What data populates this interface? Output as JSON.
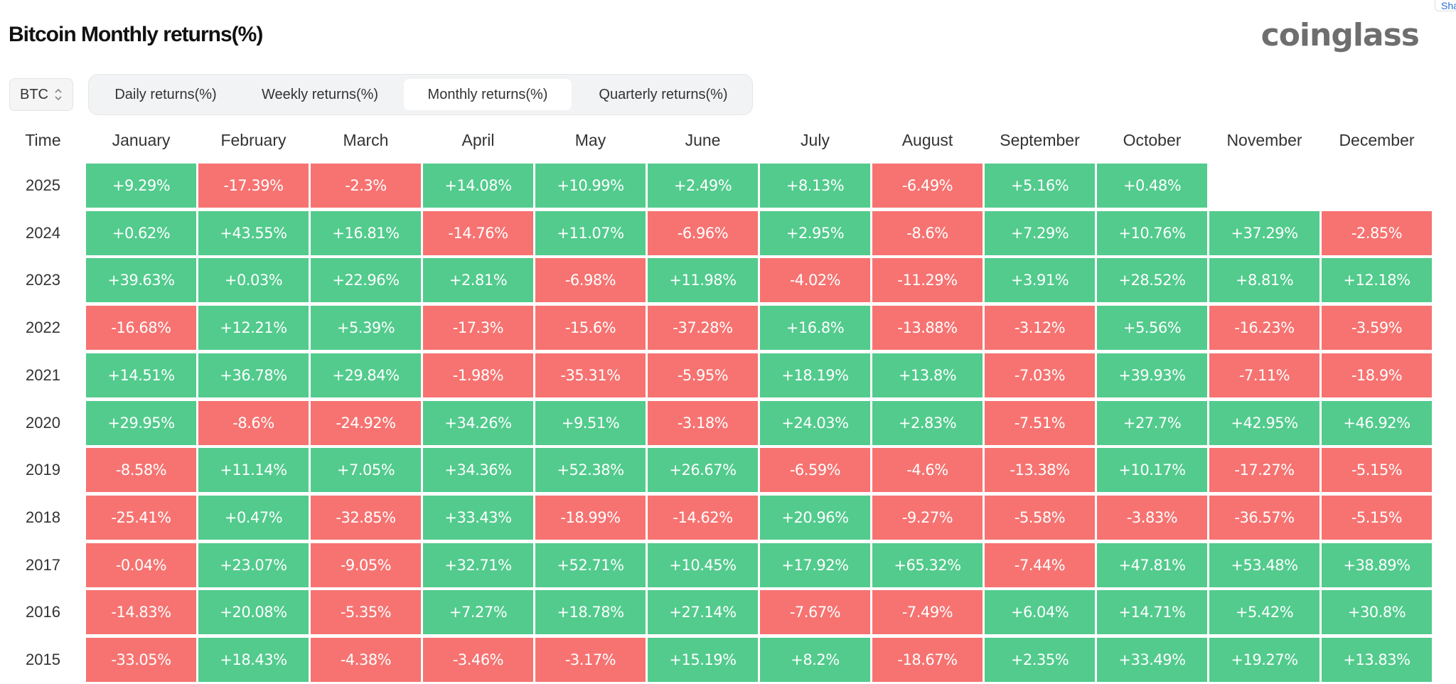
{
  "header": {
    "title": "Bitcoin Monthly returns(%)",
    "logo": "coinglass",
    "share_label": "Sha"
  },
  "controls": {
    "asset_select": {
      "value": "BTC",
      "icon": "up-down-chevron-icon"
    },
    "tabs": [
      {
        "label": "Daily returns(%)",
        "active": false
      },
      {
        "label": "Weekly returns(%)",
        "active": false
      },
      {
        "label": "Monthly returns(%)",
        "active": true
      },
      {
        "label": "Quarterly returns(%)",
        "active": false
      }
    ]
  },
  "colors": {
    "positive": "#52cb8d",
    "negative": "#f67371"
  },
  "chart_data": {
    "type": "heatmap",
    "title": "Bitcoin Monthly returns(%)",
    "row_header": "Time",
    "columns": [
      "January",
      "February",
      "March",
      "April",
      "May",
      "June",
      "July",
      "August",
      "September",
      "October",
      "November",
      "December"
    ],
    "rows": [
      {
        "year": "2025",
        "values": [
          "+9.29%",
          "-17.39%",
          "-2.3%",
          "+14.08%",
          "+10.99%",
          "+2.49%",
          "+8.13%",
          "-6.49%",
          "+5.16%",
          "+0.48%",
          null,
          null
        ]
      },
      {
        "year": "2024",
        "values": [
          "+0.62%",
          "+43.55%",
          "+16.81%",
          "-14.76%",
          "+11.07%",
          "-6.96%",
          "+2.95%",
          "-8.6%",
          "+7.29%",
          "+10.76%",
          "+37.29%",
          "-2.85%"
        ]
      },
      {
        "year": "2023",
        "values": [
          "+39.63%",
          "+0.03%",
          "+22.96%",
          "+2.81%",
          "-6.98%",
          "+11.98%",
          "-4.02%",
          "-11.29%",
          "+3.91%",
          "+28.52%",
          "+8.81%",
          "+12.18%"
        ]
      },
      {
        "year": "2022",
        "values": [
          "-16.68%",
          "+12.21%",
          "+5.39%",
          "-17.3%",
          "-15.6%",
          "-37.28%",
          "+16.8%",
          "-13.88%",
          "-3.12%",
          "+5.56%",
          "-16.23%",
          "-3.59%"
        ]
      },
      {
        "year": "2021",
        "values": [
          "+14.51%",
          "+36.78%",
          "+29.84%",
          "-1.98%",
          "-35.31%",
          "-5.95%",
          "+18.19%",
          "+13.8%",
          "-7.03%",
          "+39.93%",
          "-7.11%",
          "-18.9%"
        ]
      },
      {
        "year": "2020",
        "values": [
          "+29.95%",
          "-8.6%",
          "-24.92%",
          "+34.26%",
          "+9.51%",
          "-3.18%",
          "+24.03%",
          "+2.83%",
          "-7.51%",
          "+27.7%",
          "+42.95%",
          "+46.92%"
        ]
      },
      {
        "year": "2019",
        "values": [
          "-8.58%",
          "+11.14%",
          "+7.05%",
          "+34.36%",
          "+52.38%",
          "+26.67%",
          "-6.59%",
          "-4.6%",
          "-13.38%",
          "+10.17%",
          "-17.27%",
          "-5.15%"
        ]
      },
      {
        "year": "2018",
        "values": [
          "-25.41%",
          "+0.47%",
          "-32.85%",
          "+33.43%",
          "-18.99%",
          "-14.62%",
          "+20.96%",
          "-9.27%",
          "-5.58%",
          "-3.83%",
          "-36.57%",
          "-5.15%"
        ]
      },
      {
        "year": "2017",
        "values": [
          "-0.04%",
          "+23.07%",
          "-9.05%",
          "+32.71%",
          "+52.71%",
          "+10.45%",
          "+17.92%",
          "+65.32%",
          "-7.44%",
          "+47.81%",
          "+53.48%",
          "+38.89%"
        ]
      },
      {
        "year": "2016",
        "values": [
          "-14.83%",
          "+20.08%",
          "-5.35%",
          "+7.27%",
          "+18.78%",
          "+27.14%",
          "-7.67%",
          "-7.49%",
          "+6.04%",
          "+14.71%",
          "+5.42%",
          "+30.8%"
        ]
      },
      {
        "year": "2015",
        "values": [
          "-33.05%",
          "+18.43%",
          "-4.38%",
          "-3.46%",
          "-3.17%",
          "+15.19%",
          "+8.2%",
          "-18.67%",
          "+2.35%",
          "+33.49%",
          "+19.27%",
          "+13.83%"
        ]
      }
    ]
  }
}
